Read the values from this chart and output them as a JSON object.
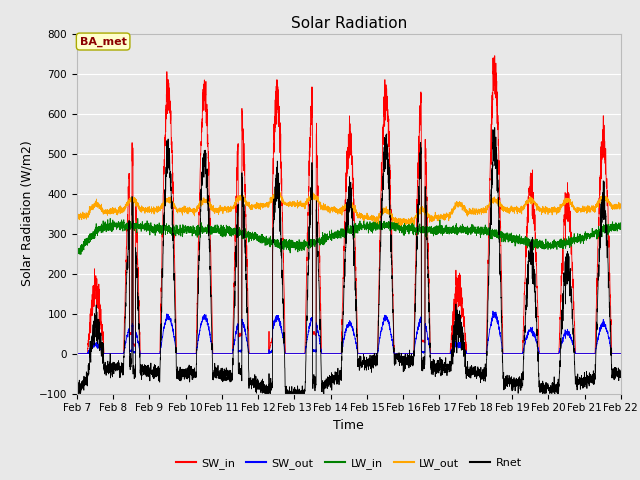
{
  "title": "Solar Radiation",
  "xlabel": "Time",
  "ylabel": "Solar Radiation (W/m2)",
  "ylim": [
    -100,
    800
  ],
  "xlim_days": [
    7,
    22
  ],
  "xtick_labels": [
    "Feb 7",
    "Feb 8",
    "Feb 9",
    "Feb 10",
    "Feb 11",
    "Feb 12",
    "Feb 13",
    "Feb 14",
    "Feb 15",
    "Feb 16",
    "Feb 17",
    "Feb 18",
    "Feb 19",
    "Feb 20",
    "Feb 21",
    "Feb 22"
  ],
  "legend_entries": [
    "SW_in",
    "SW_out",
    "LW_in",
    "LW_out",
    "Rnet"
  ],
  "line_colors": [
    "red",
    "blue",
    "green",
    "orange",
    "black"
  ],
  "annotation_text": "BA_met",
  "annotation_color": "#8B0000",
  "annotation_bg": "#FFFFCC",
  "fig_facecolor": "#E8E8E8",
  "plot_facecolor": "#E8E8E8",
  "n_points": 4320,
  "seed": 42
}
